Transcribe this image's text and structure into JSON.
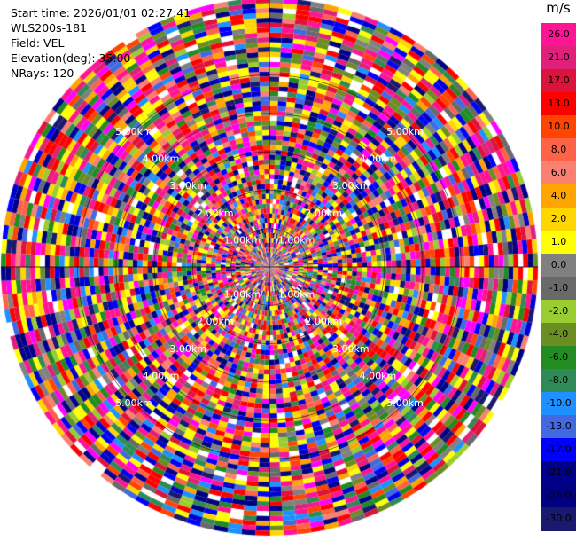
{
  "info": {
    "start_time": "Start time: 2026/01/01 02:27:41",
    "instrument": "WLS200s-181",
    "field": "Field: VEL",
    "elevation": "Elevation(deg): 35.00",
    "nrays": "NRays: 120"
  },
  "colorbar": {
    "unit": "m/s",
    "ticks": [
      "26.0",
      "21.0",
      "17.0",
      "13.0",
      "10.0",
      "8.0",
      "6.0",
      "4.0",
      "2.0",
      "1.0",
      "0.0",
      "-1.0",
      "-2.0",
      "-4.0",
      "-6.0",
      "-8.0",
      "-10.0",
      "-13.0",
      "-17.0",
      "-21.0",
      "-26.0",
      "-30.0"
    ],
    "colors": [
      "#ff1493",
      "#e0207a",
      "#dc143c",
      "#ff0000",
      "#ff4500",
      "#ff6347",
      "#fa8072",
      "#ffa500",
      "#ffd700",
      "#ffff00",
      "#808080",
      "#696969",
      "#9acd32",
      "#6b8e23",
      "#228b22",
      "#2e8b57",
      "#1e90ff",
      "#4169e1",
      "#0000ff",
      "#00008b",
      "#000080",
      "#191970"
    ]
  },
  "chart_data": {
    "type": "heatmap",
    "subtype": "ppi-scan",
    "field": "VEL",
    "nrays": 120,
    "elevation_deg": 35.0,
    "range_max_km": 7.0,
    "ring_labels": [
      "1.00km",
      "2.00km",
      "3.00km",
      "4.00km",
      "5.00km"
    ],
    "color_scale_min": -30.0,
    "color_scale_max": 26.0
  }
}
